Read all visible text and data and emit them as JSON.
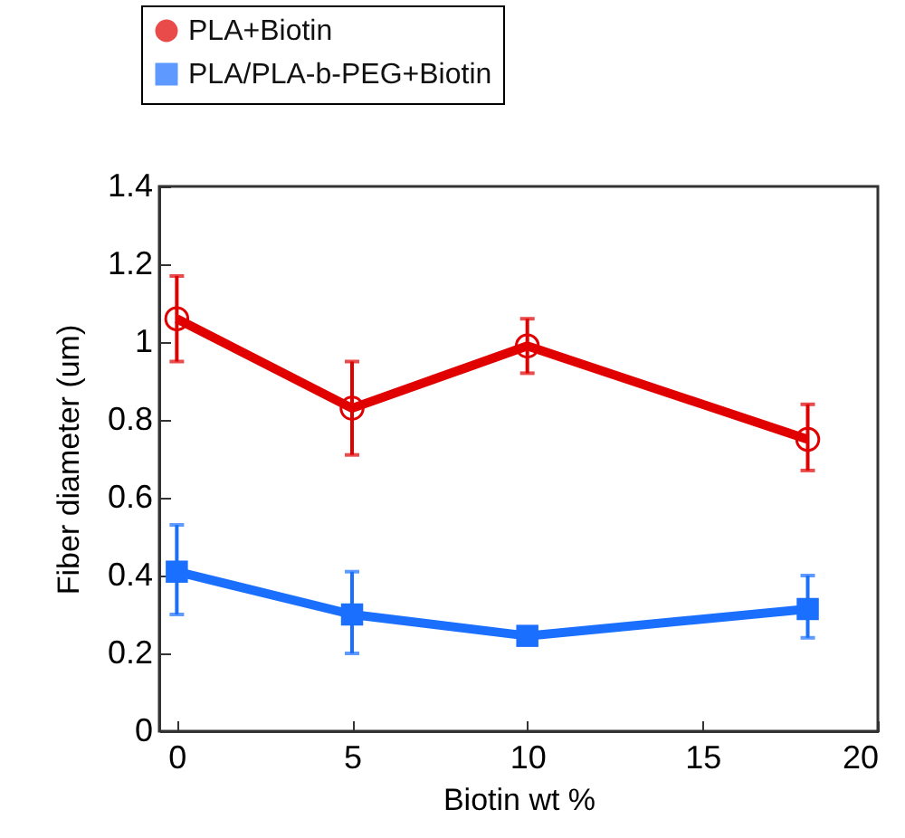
{
  "chart_data": {
    "type": "line",
    "xlabel": "Biotin wt %",
    "ylabel": "Fiber diameter (um)",
    "x": [
      0,
      5,
      10,
      18
    ],
    "series": [
      {
        "name": "PLA+Biotin",
        "color": "#e00000",
        "marker": "circle",
        "values": [
          1.06,
          0.83,
          0.99,
          0.75
        ],
        "errors": [
          [
            0.95,
            1.17
          ],
          [
            0.71,
            0.95
          ],
          [
            0.92,
            1.06
          ],
          [
            0.67,
            0.84
          ]
        ]
      },
      {
        "name": "PLA/PLA-b-PEG+Biotin",
        "color": "#1a6fff",
        "marker": "square",
        "values": [
          0.41,
          0.3,
          0.245,
          0.314
        ],
        "errors": [
          [
            0.3,
            0.53
          ],
          [
            0.2,
            0.41
          ],
          [
            0.225,
            0.265
          ],
          [
            0.24,
            0.4
          ]
        ]
      }
    ],
    "xlim": [
      -0.5,
      20
    ],
    "xticks": [
      0,
      5,
      10,
      15,
      20
    ],
    "ylim": [
      0,
      1.4
    ],
    "yticks": [
      0,
      0.2,
      0.4,
      0.6,
      0.8,
      1,
      1.2,
      1.4
    ],
    "grid": false,
    "legend": "top left",
    "line_style": "solid"
  }
}
